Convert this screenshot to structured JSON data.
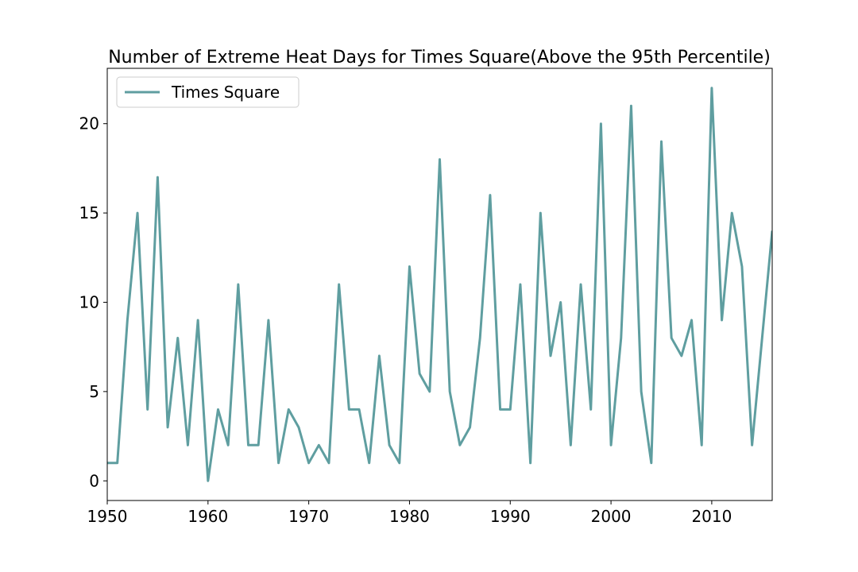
{
  "chart_data": {
    "type": "line",
    "title": "Number of Extreme Heat Days for Times Square(Above the 95th Percentile)",
    "xlabel": "",
    "ylabel": "",
    "xlim": [
      1950,
      2016
    ],
    "ylim": [
      -1.1,
      23.1
    ],
    "xticks": [
      1950,
      1960,
      1970,
      1980,
      1990,
      2000,
      2010
    ],
    "yticks": [
      0,
      5,
      10,
      15,
      20
    ],
    "grid": false,
    "legend_position": "top-left",
    "series": [
      {
        "name": "Times Square",
        "color": "#5f9ea0",
        "x": [
          1950,
          1951,
          1952,
          1953,
          1954,
          1955,
          1956,
          1957,
          1958,
          1959,
          1960,
          1961,
          1962,
          1963,
          1964,
          1965,
          1966,
          1967,
          1968,
          1969,
          1970,
          1971,
          1972,
          1973,
          1974,
          1975,
          1976,
          1977,
          1978,
          1979,
          1980,
          1981,
          1982,
          1983,
          1984,
          1985,
          1986,
          1987,
          1988,
          1989,
          1990,
          1991,
          1992,
          1993,
          1994,
          1995,
          1996,
          1997,
          1998,
          1999,
          2000,
          2001,
          2002,
          2003,
          2004,
          2005,
          2006,
          2007,
          2008,
          2009,
          2010,
          2011,
          2012,
          2013,
          2014,
          2015,
          2016
        ],
        "values": [
          1,
          1,
          9,
          15,
          4,
          17,
          3,
          8,
          2,
          9,
          0,
          4,
          2,
          11,
          2,
          2,
          9,
          1,
          4,
          3,
          1,
          2,
          1,
          11,
          4,
          4,
          1,
          7,
          2,
          1,
          12,
          6,
          5,
          18,
          5,
          2,
          3,
          8,
          16,
          4,
          4,
          11,
          1,
          15,
          7,
          10,
          2,
          11,
          4,
          20,
          2,
          8,
          21,
          5,
          1,
          19,
          8,
          7,
          9,
          2,
          22,
          9,
          15,
          12,
          2,
          8,
          14
        ]
      }
    ]
  }
}
